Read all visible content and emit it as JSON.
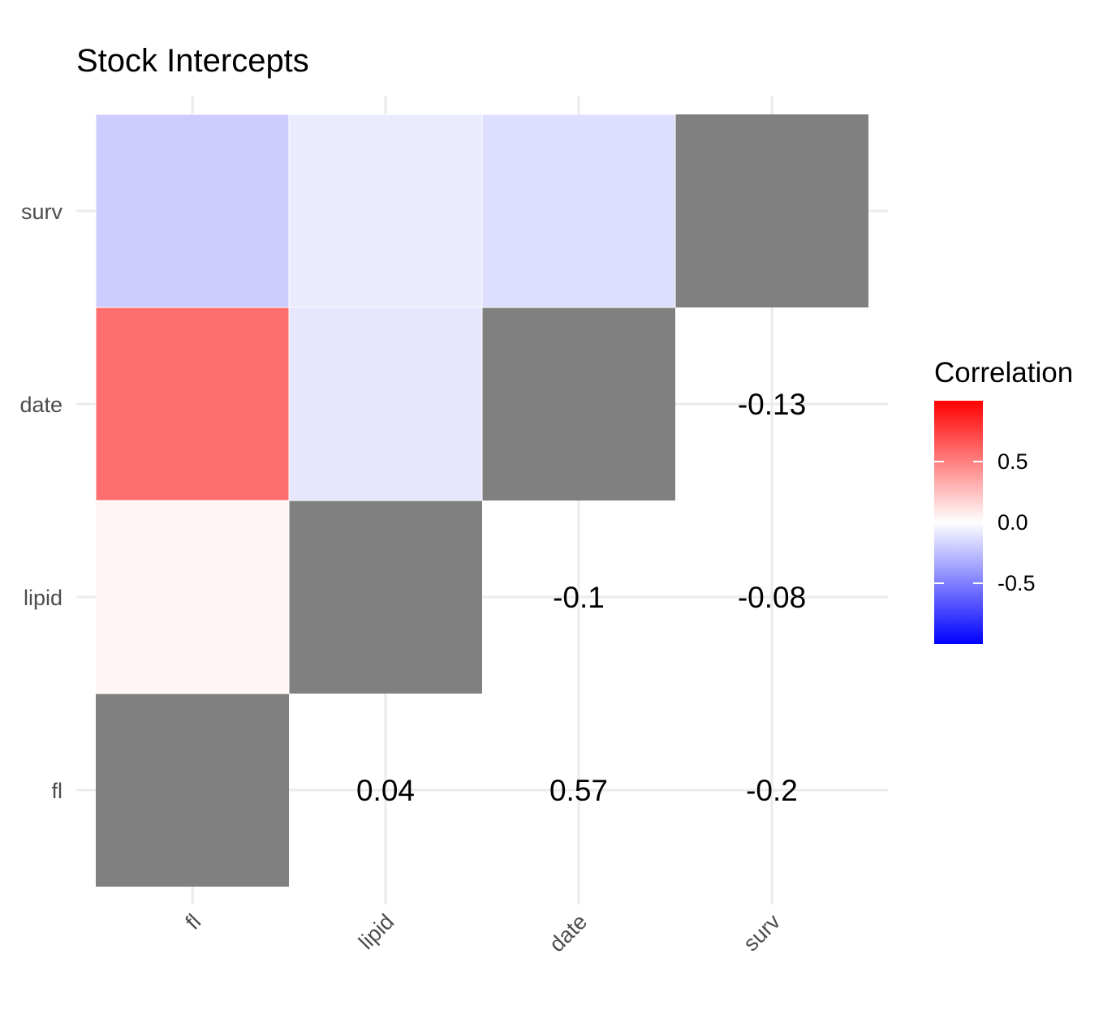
{
  "chart_data": {
    "type": "heatmap",
    "title": "Stock Intercepts",
    "xlabel": "",
    "ylabel": "",
    "x_categories": [
      "fl",
      "lipid",
      "date",
      "surv"
    ],
    "y_categories": [
      "fl",
      "lipid",
      "date",
      "surv"
    ],
    "upper_triangle_labels": [
      {
        "x": "lipid",
        "y": "fl",
        "text": "0.04"
      },
      {
        "x": "date",
        "y": "fl",
        "text": "0.57"
      },
      {
        "x": "surv",
        "y": "fl",
        "text": "-0.2"
      },
      {
        "x": "date",
        "y": "lipid",
        "text": "-0.1"
      },
      {
        "x": "surv",
        "y": "lipid",
        "text": "-0.08"
      },
      {
        "x": "surv",
        "y": "date",
        "text": "-0.13"
      }
    ],
    "lower_triangle_fill": [
      {
        "x": "fl",
        "y": "lipid",
        "value": 0.04
      },
      {
        "x": "fl",
        "y": "date",
        "value": 0.57
      },
      {
        "x": "fl",
        "y": "surv",
        "value": -0.2
      },
      {
        "x": "lipid",
        "y": "date",
        "value": -0.1
      },
      {
        "x": "lipid",
        "y": "surv",
        "value": -0.08
      },
      {
        "x": "date",
        "y": "surv",
        "value": -0.13
      }
    ],
    "diagonal_fill": "#808080",
    "color_scale": {
      "low": "#0000FF",
      "mid": "#FFFFFF",
      "high": "#FF0000",
      "limits": [
        -1,
        1
      ]
    },
    "legend": {
      "title": "Correlation",
      "ticks": [
        {
          "value": 0.5,
          "label": "0.5"
        },
        {
          "value": 0.0,
          "label": "0.0"
        },
        {
          "value": -0.5,
          "label": "-0.5"
        }
      ],
      "position": "right"
    },
    "grid": true
  }
}
